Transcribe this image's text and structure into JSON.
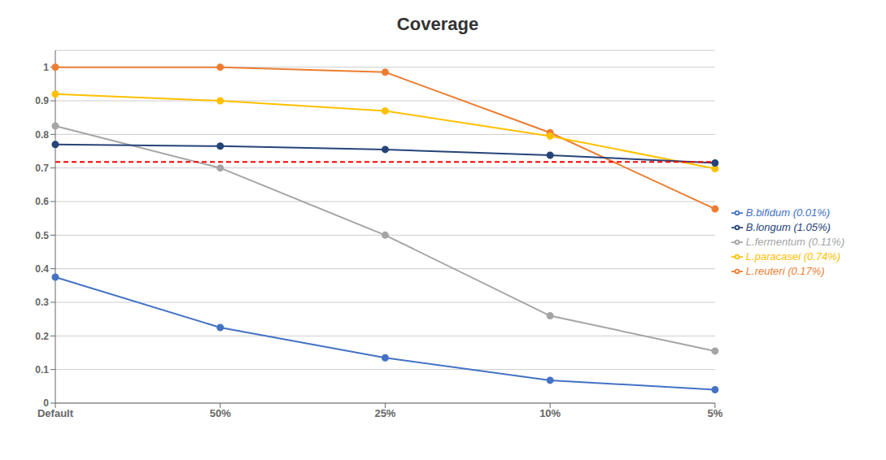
{
  "chart_data": {
    "type": "line",
    "title": "Coverage",
    "categories": [
      "Default",
      "50%",
      "25%",
      "10%",
      "5%"
    ],
    "series": [
      {
        "name": "B.bifidum (0.01%)",
        "color": "#4472C4",
        "marker": "circle",
        "line_style": "solid",
        "values": [
          0.375,
          0.225,
          0.135,
          0.068,
          0.04
        ]
      },
      {
        "name": "L.reuteri (0.17%)",
        "color": "#ED7D31",
        "marker": "circle",
        "line_style": "solid",
        "values": [
          1.0,
          1.0,
          0.985,
          0.805,
          0.578
        ]
      },
      {
        "name": "L.fermentum (0.11%)",
        "color": "#A5A5A5",
        "marker": "circle",
        "line_style": "solid",
        "values": [
          0.825,
          0.7,
          0.5,
          0.26,
          0.155
        ]
      },
      {
        "name": "L.paracasei (0.74%)",
        "color": "#FFC000",
        "marker": "circle",
        "line_style": "solid",
        "values": [
          0.92,
          0.9,
          0.87,
          0.795,
          0.698
        ]
      },
      {
        "name": "B.longum (1.05%)",
        "color": "#264478",
        "marker": "circle",
        "line_style": "solid",
        "values": [
          0.77,
          0.765,
          0.755,
          0.738,
          0.715
        ]
      }
    ],
    "hline": {
      "value": 0.718,
      "color": "#FF0000",
      "line_style": "dashed"
    },
    "ylim": [
      0,
      1.05
    ],
    "yticks": [
      0,
      0.1,
      0.2,
      0.3,
      0.4,
      0.5,
      0.6,
      0.7,
      0.8,
      0.9,
      1
    ],
    "grid": true,
    "legend": "right"
  }
}
